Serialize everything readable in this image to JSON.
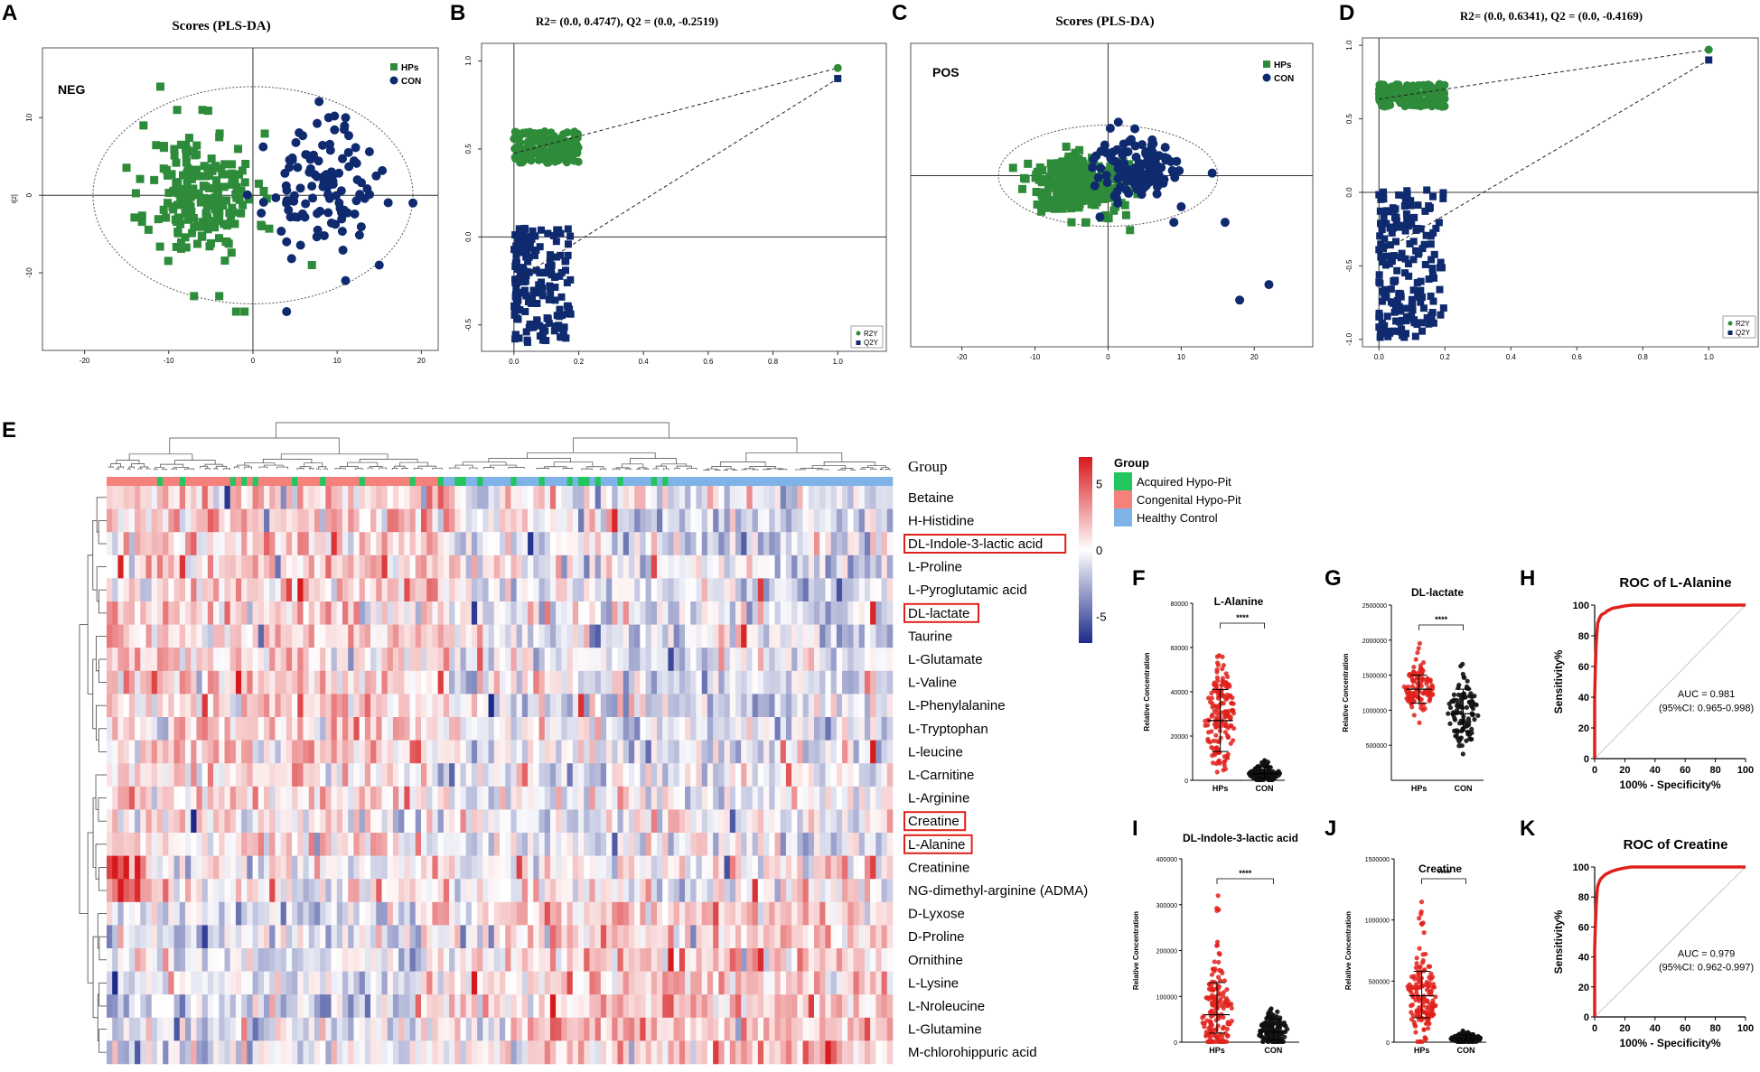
{
  "colors": {
    "hps": "#2e8b3a",
    "con": "#0f2a6e",
    "red": "#e0211b",
    "blue_dark": "#1c2a8a",
    "acquired": "#22c55e",
    "congenital": "#f4817a",
    "healthy": "#7fb3e8"
  },
  "panel_letters": [
    "A",
    "B",
    "C",
    "D",
    "E",
    "F",
    "G",
    "H",
    "I",
    "J",
    "K"
  ],
  "chart_data": [
    {
      "panel": "A",
      "type": "scatter",
      "title": "Scores (PLS-DA)",
      "mode_label": "NEG",
      "xlabel": "",
      "ylabel": "t[2]",
      "xlim": [
        -25,
        22
      ],
      "ylim": [
        -20,
        19
      ],
      "xticks": [
        -20,
        -10,
        0,
        10,
        20
      ],
      "yticks": [
        -10,
        0,
        10
      ],
      "ellipse": {
        "cx": 0,
        "cy": 0,
        "rx": 19,
        "ry": 14
      },
      "series": [
        {
          "name": "HPs",
          "marker": "square",
          "cx": -6,
          "cy": 0,
          "sx": 4,
          "sy": 5,
          "n": 200,
          "seed": 11,
          "extra": [
            [
              -11,
              14
            ],
            [
              -9,
              11
            ],
            [
              -6,
              11
            ],
            [
              -13,
              9
            ],
            [
              -8,
              6
            ],
            [
              -7,
              -13
            ],
            [
              -2,
              -15
            ],
            [
              -1,
              -15
            ],
            [
              7,
              -9
            ],
            [
              -4,
              -13
            ]
          ]
        },
        {
          "name": "CON",
          "marker": "circle",
          "cx": 8,
          "cy": 1,
          "sx": 4,
          "sy": 4.5,
          "n": 110,
          "seed": 23,
          "extra": [
            [
              19,
              -1
            ],
            [
              15,
              -9
            ],
            [
              11,
              -11
            ],
            [
              4,
              -15
            ],
            [
              11,
              10
            ],
            [
              4,
              -6
            ]
          ]
        }
      ],
      "legend": [
        "HPs",
        "CON"
      ]
    },
    {
      "panel": "B",
      "type": "scatter",
      "title": "R2= (0.0, 0.4747), Q2 = (0.0, -0.2519)",
      "xlim": [
        -0.1,
        1.15
      ],
      "ylim": [
        -0.65,
        1.1
      ],
      "xticks": [
        0.0,
        0.2,
        0.4,
        0.6,
        0.8,
        1.0
      ],
      "yticks": [
        -0.5,
        0.0,
        0.5,
        1.0
      ],
      "r2y_intercept": 0.4747,
      "q2y_intercept": -0.2519,
      "r2y_end": [
        1.0,
        0.96
      ],
      "q2y_end": [
        1.0,
        0.9
      ],
      "clusters": [
        {
          "name": "R2Y",
          "marker": "circle",
          "xmin": 0,
          "xmax": 0.2,
          "ymin": 0.42,
          "ymax": 0.6,
          "n": 160,
          "seed": 31
        },
        {
          "name": "Q2Y",
          "marker": "square",
          "xmin": 0,
          "xmax": 0.18,
          "ymin": -0.6,
          "ymax": 0.05,
          "n": 170,
          "seed": 37
        }
      ],
      "legend": [
        "R2Y",
        "Q2Y"
      ]
    },
    {
      "panel": "C",
      "type": "scatter",
      "title": "Scores (PLS-DA)",
      "mode_label": "POS",
      "xlim": [
        -27,
        28
      ],
      "ylim": [
        -22,
        17
      ],
      "xticks": [
        -20,
        -10,
        0,
        10,
        20
      ],
      "yticks": [],
      "ellipse": {
        "cx": 0,
        "cy": 0,
        "rx": 15,
        "ry": 6.5
      },
      "series": [
        {
          "name": "HPs",
          "marker": "square",
          "cx": -4,
          "cy": -1,
          "sx": 4,
          "sy": 2.2,
          "n": 300,
          "seed": 41,
          "extra": [
            [
              -13,
              1
            ],
            [
              -9,
              -4
            ],
            [
              -3,
              -6
            ],
            [
              3,
              -7
            ],
            [
              -5,
              -6
            ],
            [
              1,
              -4
            ]
          ]
        },
        {
          "name": "CON",
          "marker": "circle",
          "cx": 4,
          "cy": 1,
          "sx": 4,
          "sy": 2.5,
          "n": 120,
          "seed": 47,
          "extra": [
            [
              16,
              -6
            ],
            [
              18,
              -16
            ],
            [
              22,
              -14
            ],
            [
              10,
              -4
            ],
            [
              9,
              -6
            ]
          ]
        }
      ],
      "legend": [
        "HPs",
        "CON"
      ]
    },
    {
      "panel": "D",
      "type": "scatter",
      "title": "R2= (0.0, 0.6341), Q2 = (0.0, -0.4169)",
      "xlim": [
        -0.05,
        1.15
      ],
      "ylim": [
        -1.05,
        1.05
      ],
      "xticks": [
        0.0,
        0.2,
        0.4,
        0.6,
        0.8,
        1.0
      ],
      "yticks": [
        -1.0,
        -0.5,
        0.0,
        0.5,
        1.0
      ],
      "r2y_intercept": 0.6341,
      "q2y_intercept": -0.4169,
      "r2y_end": [
        1.0,
        0.97
      ],
      "q2y_end": [
        1.0,
        0.9
      ],
      "clusters": [
        {
          "name": "R2Y",
          "marker": "circle",
          "xmin": 0,
          "xmax": 0.2,
          "ymin": 0.58,
          "ymax": 0.74,
          "n": 180,
          "seed": 53
        },
        {
          "name": "Q2Y",
          "marker": "square",
          "xmin": 0,
          "xmax": 0.2,
          "ymin": -1.0,
          "ymax": 0.02,
          "n": 190,
          "seed": 59
        }
      ],
      "legend": [
        "R2Y",
        "Q2Y"
      ]
    },
    {
      "panel": "E",
      "type": "heatmap",
      "group_header": "Group",
      "rows": [
        "Betaine",
        "H-Histidine",
        "DL-Indole-3-lactic acid",
        "L-Proline",
        "L-Pyroglutamic acid",
        "DL-lactate",
        "Taurine",
        "L-Glutamate",
        "L-Valine",
        "L-Phenylalanine",
        "L-Tryptophan",
        "L-leucine",
        "L-Carnitine",
        "L-Arginine",
        "Creatine",
        "L-Alanine",
        "Creatinine",
        "NG-dimethyl-arginine (ADMA)",
        "D-Lyxose",
        "D-Proline",
        "Ornithine",
        "L-Lysine",
        "L-Nroleucine",
        "L-Glutamine",
        "M-chlorohippuric acid"
      ],
      "highlighted_rows": [
        "DL-Indole-3-lactic acid",
        "DL-lactate",
        "Creatine",
        "L-Alanine"
      ],
      "n_columns": 420,
      "color_scale": {
        "ticks": [
          5,
          0,
          -5
        ],
        "min": -7,
        "max": 7
      },
      "legend_title": "Group",
      "legend": [
        "Acquired Hypo-Pit",
        "Congenital Hypo-Pit",
        "Healthy Control"
      ]
    },
    {
      "panel": "F",
      "type": "scatter",
      "title": "L-Alanine",
      "ylabel": "Relative Concentration",
      "categories": [
        "HPs",
        "CON"
      ],
      "ylim": [
        0,
        80000
      ],
      "yticks": [
        0,
        20000,
        40000,
        60000,
        80000
      ],
      "yticklabels": [
        "0",
        "20000",
        "40000",
        "60000",
        "80000"
      ],
      "groups": [
        {
          "name": "HPs",
          "mean": 27000,
          "sd_low": 13000,
          "sd_high": 41000,
          "n": 160,
          "seed": 61
        },
        {
          "name": "CON",
          "mean": 3000,
          "sd_low": 1000,
          "sd_high": 6000,
          "n": 140,
          "seed": 67
        }
      ],
      "significance": "****"
    },
    {
      "panel": "G",
      "type": "scatter",
      "title": "DL-lactate",
      "ylabel": "Relative Concentration",
      "categories": [
        "HPs",
        "CON"
      ],
      "ylim": [
        0,
        2500000
      ],
      "yticks": [
        500000,
        1000000,
        1500000,
        2000000,
        2500000
      ],
      "yticklabels": [
        "500000",
        "1000000",
        "1500000",
        "2000000",
        "2500000"
      ],
      "groups": [
        {
          "name": "HPs",
          "mean": 1300000,
          "sd_low": 1100000,
          "sd_high": 1500000,
          "n": 110,
          "seed": 71
        },
        {
          "name": "CON",
          "mean": 950000,
          "sd_low": 700000,
          "sd_high": 1300000,
          "n": 100,
          "seed": 73
        }
      ],
      "significance": "****"
    },
    {
      "panel": "H",
      "type": "line",
      "title": "ROC of L-Alanine",
      "xlabel": "100% - Specificity%",
      "ylabel": "Sensitivity%",
      "xlim": [
        0,
        100
      ],
      "ylim": [
        0,
        100
      ],
      "xticks": [
        0,
        20,
        40,
        60,
        80,
        100
      ],
      "yticks": [
        0,
        20,
        40,
        60,
        80,
        100
      ],
      "auc_text": "AUC = 0.981",
      "ci_text": "(95%CI: 0.965-0.998)",
      "curve": [
        [
          0,
          0
        ],
        [
          0,
          40
        ],
        [
          0.5,
          60
        ],
        [
          1,
          75
        ],
        [
          1.5,
          82
        ],
        [
          2,
          88
        ],
        [
          3,
          91
        ],
        [
          4,
          93
        ],
        [
          5,
          94
        ],
        [
          7,
          95
        ],
        [
          8,
          96
        ],
        [
          10,
          97
        ],
        [
          12,
          98
        ],
        [
          15,
          98.5
        ],
        [
          20,
          99.5
        ],
        [
          25,
          100
        ],
        [
          100,
          100
        ]
      ]
    },
    {
      "panel": "I",
      "type": "scatter",
      "title": "DL-Indole-3-lactic acid",
      "ylabel": "Relative Concentration",
      "categories": [
        "HPs",
        "CON"
      ],
      "ylim": [
        0,
        400000
      ],
      "yticks": [
        0,
        100000,
        200000,
        300000,
        400000
      ],
      "yticklabels": [
        "0",
        "100000",
        "200000",
        "300000",
        "400000"
      ],
      "groups": [
        {
          "name": "HPs",
          "mean": 60000,
          "sd_low": 20000,
          "sd_high": 130000,
          "n": 150,
          "seed": 79
        },
        {
          "name": "CON",
          "mean": 22000,
          "sd_low": 5000,
          "sd_high": 50000,
          "n": 130,
          "seed": 83
        }
      ],
      "significance": "****"
    },
    {
      "panel": "J",
      "type": "scatter",
      "title": "Creatine",
      "ylabel": "Relative Concentration",
      "categories": [
        "HPs",
        "CON"
      ],
      "ylim": [
        0,
        1500000
      ],
      "yticks": [
        0,
        500000,
        1000000,
        1500000
      ],
      "yticklabels": [
        "0",
        "500000",
        "1000000",
        "1500000"
      ],
      "groups": [
        {
          "name": "HPs",
          "mean": 380000,
          "sd_low": 200000,
          "sd_high": 580000,
          "n": 150,
          "seed": 89
        },
        {
          "name": "CON",
          "mean": 30000,
          "sd_low": 10000,
          "sd_high": 60000,
          "n": 130,
          "seed": 97
        }
      ],
      "significance": "****"
    },
    {
      "panel": "K",
      "type": "line",
      "title": "ROC of Creatine",
      "xlabel": "100% - Specificity%",
      "ylabel": "Sensitivity%",
      "xlim": [
        0,
        100
      ],
      "ylim": [
        0,
        100
      ],
      "xticks": [
        0,
        20,
        40,
        60,
        80,
        100
      ],
      "yticks": [
        0,
        20,
        40,
        60,
        80,
        100
      ],
      "auc_text": "AUC = 0.979",
      "ci_text": "(95%CI: 0.962-0.997)",
      "curve": [
        [
          0,
          0
        ],
        [
          0,
          45
        ],
        [
          0.5,
          62
        ],
        [
          1,
          74
        ],
        [
          1.5,
          82
        ],
        [
          2,
          87
        ],
        [
          3,
          90
        ],
        [
          4,
          92
        ],
        [
          5,
          93
        ],
        [
          7,
          95
        ],
        [
          9,
          96
        ],
        [
          11,
          97
        ],
        [
          14,
          98
        ],
        [
          18,
          99
        ],
        [
          24,
          100
        ],
        [
          100,
          100
        ]
      ]
    }
  ]
}
